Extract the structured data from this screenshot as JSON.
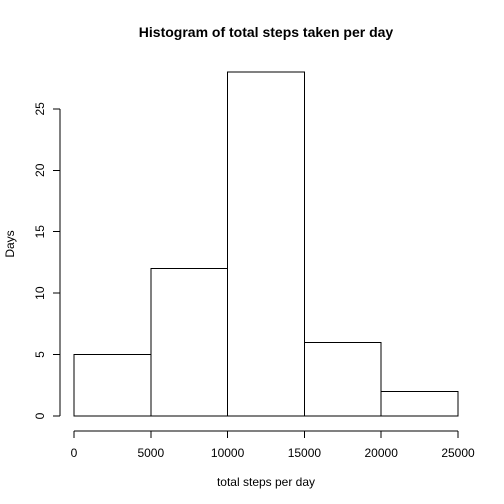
{
  "chart_data": {
    "type": "bar",
    "title": "Histogram of total steps taken per day",
    "xlabel": "total steps per day",
    "ylabel": "Days",
    "bins": [
      {
        "from": 0,
        "to": 5000,
        "count": 5
      },
      {
        "from": 5000,
        "to": 10000,
        "count": 12
      },
      {
        "from": 10000,
        "to": 15000,
        "count": 28
      },
      {
        "from": 15000,
        "to": 20000,
        "count": 6
      },
      {
        "from": 20000,
        "to": 25000,
        "count": 2
      }
    ],
    "xlim": [
      0,
      25000
    ],
    "ylim": [
      0,
      28
    ],
    "x_ticks": [
      0,
      5000,
      10000,
      15000,
      20000,
      25000
    ],
    "x_tick_labels": [
      "0",
      "5000",
      "10000",
      "15000",
      "20000",
      "25000"
    ],
    "y_ticks": [
      0,
      5,
      10,
      15,
      20,
      25
    ],
    "y_tick_labels": [
      "0",
      "5",
      "10",
      "15",
      "20",
      "25"
    ],
    "grid": false,
    "colors": {
      "bar_fill": "#ffffff",
      "bar_stroke": "#000000",
      "axis": "#000000",
      "background": "#ffffff"
    }
  }
}
